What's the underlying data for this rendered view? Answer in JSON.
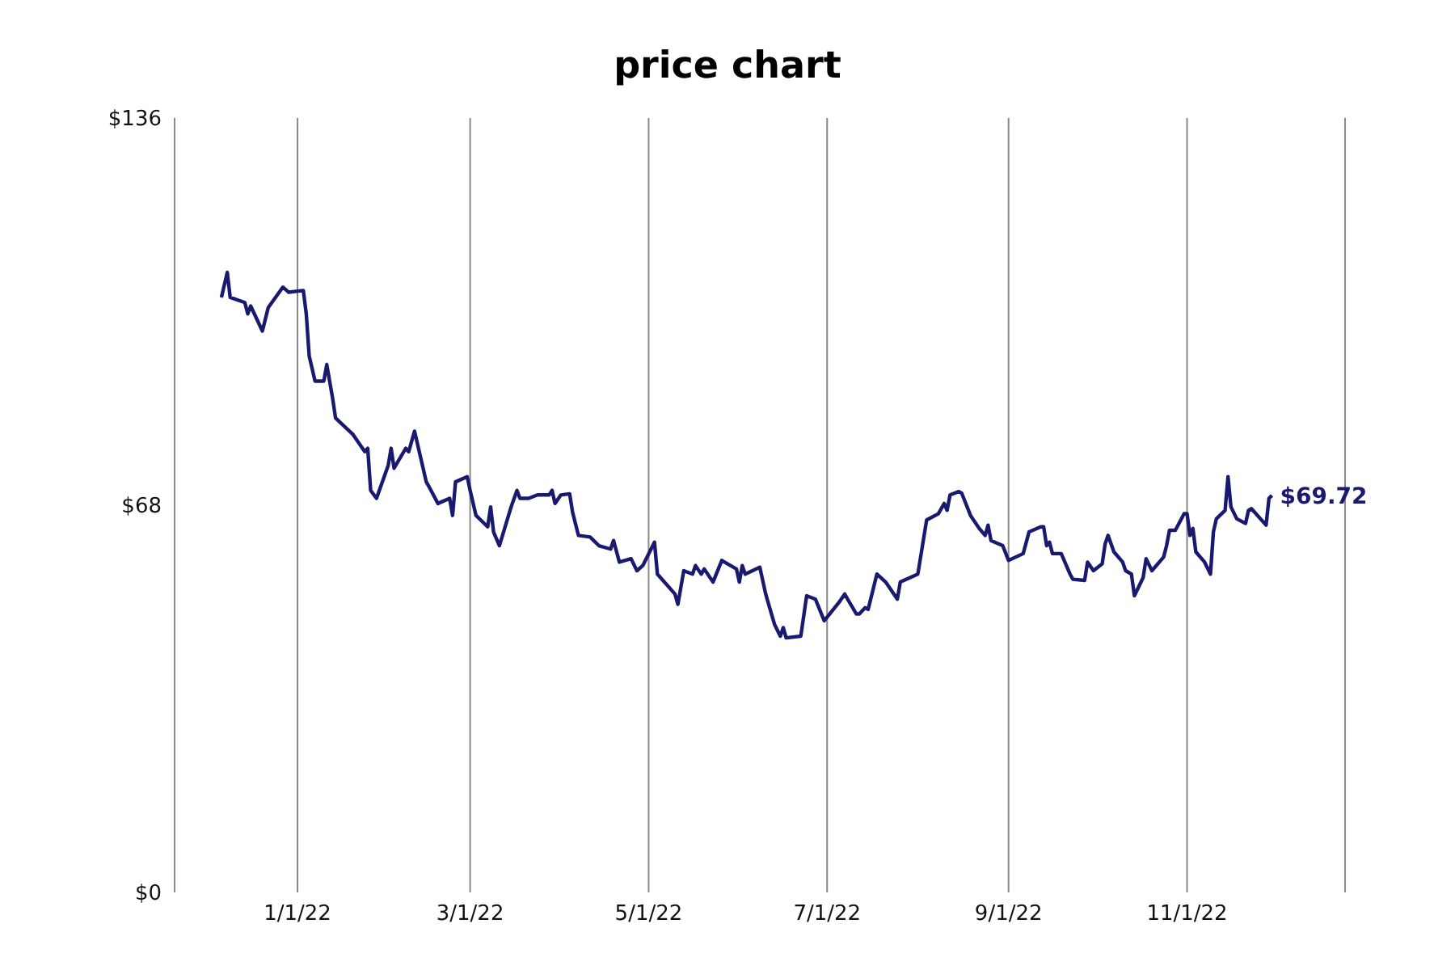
{
  "chart_data": {
    "type": "line",
    "title": "price chart",
    "x": [
      "2021-12-06",
      "2021-12-08",
      "2021-12-09",
      "2021-12-14",
      "2021-12-15",
      "2021-12-16",
      "2021-12-20",
      "2021-12-22",
      "2021-12-27",
      "2021-12-29",
      "2022-01-03",
      "2022-01-04",
      "2022-01-05",
      "2022-01-07",
      "2022-01-10",
      "2022-01-11",
      "2022-01-13",
      "2022-01-14",
      "2022-01-20",
      "2022-01-24",
      "2022-01-25",
      "2022-01-26",
      "2022-01-28",
      "2022-02-01",
      "2022-02-02",
      "2022-02-03",
      "2022-02-07",
      "2022-02-08",
      "2022-02-10",
      "2022-02-14",
      "2022-02-15",
      "2022-02-18",
      "2022-02-22",
      "2022-02-23",
      "2022-02-24",
      "2022-02-28",
      "2022-03-01",
      "2022-03-03",
      "2022-03-07",
      "2022-03-08",
      "2022-03-09",
      "2022-03-11",
      "2022-03-15",
      "2022-03-17",
      "2022-03-18",
      "2022-03-21",
      "2022-03-24",
      "2022-03-28",
      "2022-03-29",
      "2022-03-30",
      "2022-04-01",
      "2022-04-04",
      "2022-04-05",
      "2022-04-07",
      "2022-04-11",
      "2022-04-14",
      "2022-04-18",
      "2022-04-19",
      "2022-04-21",
      "2022-04-25",
      "2022-04-27",
      "2022-04-29",
      "2022-05-03",
      "2022-05-04",
      "2022-05-10",
      "2022-05-11",
      "2022-05-13",
      "2022-05-16",
      "2022-05-17",
      "2022-05-19",
      "2022-05-20",
      "2022-05-23",
      "2022-05-26",
      "2022-05-31",
      "2022-06-01",
      "2022-06-02",
      "2022-06-03",
      "2022-06-08",
      "2022-06-10",
      "2022-06-13",
      "2022-06-15",
      "2022-06-16",
      "2022-06-17",
      "2022-06-22",
      "2022-06-24",
      "2022-06-27",
      "2022-06-30",
      "2022-07-05",
      "2022-07-07",
      "2022-07-08",
      "2022-07-11",
      "2022-07-12",
      "2022-07-14",
      "2022-07-15",
      "2022-07-18",
      "2022-07-21",
      "2022-07-25",
      "2022-07-26",
      "2022-08-01",
      "2022-08-04",
      "2022-08-08",
      "2022-08-10",
      "2022-08-11",
      "2022-08-12",
      "2022-08-15",
      "2022-08-16",
      "2022-08-19",
      "2022-08-22",
      "2022-08-24",
      "2022-08-25",
      "2022-08-26",
      "2022-08-30",
      "2022-09-01",
      "2022-09-06",
      "2022-09-08",
      "2022-09-12",
      "2022-09-13",
      "2022-09-14",
      "2022-09-15",
      "2022-09-16",
      "2022-09-19",
      "2022-09-22",
      "2022-09-23",
      "2022-09-27",
      "2022-09-28",
      "2022-09-30",
      "2022-10-03",
      "2022-10-04",
      "2022-10-05",
      "2022-10-07",
      "2022-10-10",
      "2022-10-11",
      "2022-10-13",
      "2022-10-14",
      "2022-10-17",
      "2022-10-18",
      "2022-10-20",
      "2022-10-24",
      "2022-10-25",
      "2022-10-26",
      "2022-10-28",
      "2022-10-31",
      "2022-11-01",
      "2022-11-02",
      "2022-11-03",
      "2022-11-04",
      "2022-11-07",
      "2022-11-09",
      "2022-11-10",
      "2022-11-11",
      "2022-11-14",
      "2022-11-15",
      "2022-11-16",
      "2022-11-18",
      "2022-11-21",
      "2022-11-22",
      "2022-11-23",
      "2022-11-28",
      "2022-11-29",
      "2022-11-30"
    ],
    "series": [
      {
        "color": "#191970",
        "values": [
          104.5,
          108.9,
          104.5,
          103.6,
          101.6,
          103,
          98.6,
          102.7,
          106.3,
          105.4,
          105.7,
          101.6,
          94.2,
          89.8,
          89.8,
          92.7,
          86.8,
          83.3,
          80.4,
          77.4,
          78,
          70.6,
          69.2,
          75,
          78,
          74.5,
          78,
          77.4,
          81,
          72.1,
          71.2,
          68.3,
          69.2,
          66.2,
          72.1,
          73,
          70.6,
          66.2,
          64.2,
          67.7,
          63.3,
          60.9,
          67.7,
          70.6,
          69.2,
          69.2,
          69.8,
          69.8,
          70.6,
          68.3,
          69.8,
          70,
          66.8,
          62.7,
          62.4,
          60.9,
          60.3,
          61.8,
          58,
          58.6,
          56.5,
          57.4,
          61.5,
          55.9,
          52.4,
          50.6,
          56.5,
          55.9,
          57.4,
          55.9,
          56.8,
          54.5,
          58.3,
          56.8,
          54.5,
          57.4,
          55.9,
          57.1,
          52.4,
          47.1,
          45,
          46.5,
          44.7,
          45,
          52.1,
          51.5,
          47.7,
          50.9,
          52.4,
          51.5,
          48.9,
          48.9,
          50,
          49.7,
          55.9,
          54.5,
          51.5,
          54.5,
          55.9,
          65.4,
          66.5,
          68.3,
          67.1,
          69.8,
          70.4,
          70.1,
          66.2,
          63.9,
          62.7,
          64.5,
          61.8,
          60.9,
          58.3,
          59.5,
          63.3,
          64.2,
          64.2,
          60.9,
          61.5,
          59.5,
          59.5,
          55.9,
          55,
          54.8,
          58,
          56.5,
          57.7,
          61.2,
          62.7,
          59.8,
          58,
          56.5,
          55.9,
          52.1,
          55.3,
          58.6,
          56.5,
          58.9,
          60.9,
          63.6,
          63.6,
          66.5,
          66.5,
          62.7,
          63.9,
          59.8,
          58,
          55.9,
          63.3,
          65.6,
          67.1,
          73,
          67.7,
          65.6,
          64.8,
          67.1,
          67.4,
          64.5,
          69.2,
          69.72
        ]
      }
    ],
    "xlim": [
      "2021-11-20",
      "2022-12-25"
    ],
    "xticks": [
      {
        "value": "2022-01-01",
        "label": "1/1/22"
      },
      {
        "value": "2022-03-01",
        "label": "3/1/22"
      },
      {
        "value": "2022-05-01",
        "label": "5/1/22"
      },
      {
        "value": "2022-07-01",
        "label": "7/1/22"
      },
      {
        "value": "2022-09-01",
        "label": "9/1/22"
      },
      {
        "value": "2022-11-01",
        "label": "11/1/22"
      }
    ],
    "ylim": [
      0,
      136
    ],
    "yticks": [
      {
        "value": 0,
        "label": "$0"
      },
      {
        "value": 68,
        "label": "$68"
      },
      {
        "value": 136,
        "label": "$136"
      }
    ],
    "grid": "x",
    "annotations": [
      {
        "text": "$69.72",
        "x": "2022-11-30",
        "y": 69.72
      }
    ]
  }
}
